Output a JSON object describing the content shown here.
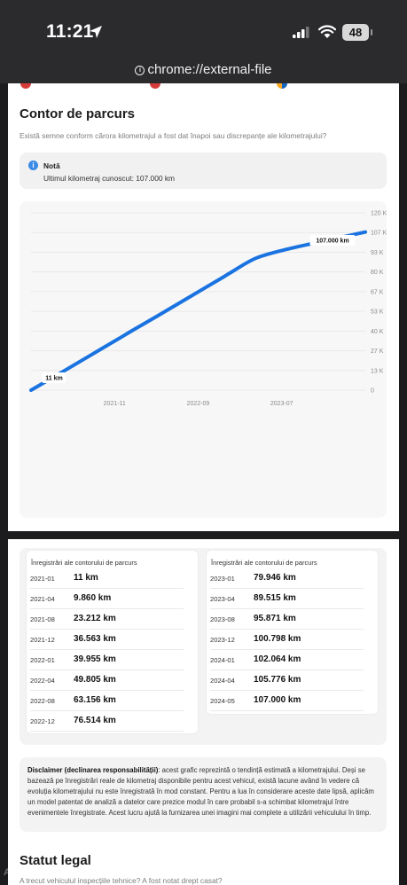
{
  "status_bar": {
    "time": "11:21",
    "battery": "48"
  },
  "browser": {
    "url": "chrome://external-file"
  },
  "odometer": {
    "title": "Contor de parcurs",
    "subtitle": "Există semne conform cărora kilometrajul a fost dat înapoi sau discrepanțe ale kilometrajului?",
    "note_title": "Notă",
    "note_text": "Ultimul kilometraj cunoscut: 107.000 km"
  },
  "chart_data": {
    "type": "line",
    "title": "",
    "xlabel": "",
    "ylabel": "",
    "x_tick_labels": [
      "2021-11",
      "2022-09",
      "2023-07"
    ],
    "y_tick_labels": [
      "120 K",
      "107 K",
      "93 K",
      "80 K",
      "67 K",
      "53 K",
      "40 K",
      "27 K",
      "13 K",
      "0"
    ],
    "ylim": [
      0,
      120000
    ],
    "grid": true,
    "series": [
      {
        "x": [
          "2021-01",
          "2021-04",
          "2021-08",
          "2021-12",
          "2022-01",
          "2022-04",
          "2022-08",
          "2022-12",
          "2023-01",
          "2023-04",
          "2023-08",
          "2023-12",
          "2024-01",
          "2024-04",
          "2024-05"
        ],
        "values": [
          11,
          9860,
          23212,
          36563,
          39955,
          49805,
          63156,
          76514,
          79946,
          89515,
          95871,
          100798,
          102064,
          105776,
          107000
        ]
      }
    ],
    "annotations": {
      "start_label": "11 km",
      "end_label": "107.000 km"
    },
    "line_color": "#1a73e0"
  },
  "records": {
    "left": {
      "title": "Înregistrări ale contorului de parcurs",
      "rows": [
        {
          "date": "2021-01",
          "value": "11 km"
        },
        {
          "date": "2021-04",
          "value": "9.860 km"
        },
        {
          "date": "2021-08",
          "value": "23.212 km"
        },
        {
          "date": "2021-12",
          "value": "36.563 km"
        },
        {
          "date": "2022-01",
          "value": "39.955 km"
        },
        {
          "date": "2022-04",
          "value": "49.805 km"
        },
        {
          "date": "2022-08",
          "value": "63.156 km"
        },
        {
          "date": "2022-12",
          "value": "76.514 km"
        }
      ]
    },
    "right": {
      "title": "Înregistrări ale contorului de parcurs",
      "rows": [
        {
          "date": "2023-01",
          "value": "79.946 km"
        },
        {
          "date": "2023-04",
          "value": "89.515 km"
        },
        {
          "date": "2023-08",
          "value": "95.871 km"
        },
        {
          "date": "2023-12",
          "value": "100.798 km"
        },
        {
          "date": "2024-01",
          "value": "102.064 km"
        },
        {
          "date": "2024-04",
          "value": "105.776 km"
        },
        {
          "date": "2024-05",
          "value": "107.000 km"
        }
      ]
    }
  },
  "disclaimer": {
    "label": "Disclaimer (declinarea responsabilității)",
    "text": ": acest grafic reprezintă o tendință estimată a kilometrajului. Deși se bazează pe înregistrări reale de kilometraj disponibile pentru acest vehicul, există lacune având în vedere că evoluția kilometrajului nu este înregistrată în mod constant. Pentru a lua în considerare aceste date lipsă, aplicăm un model patentat de analiză a datelor care prezice modul în care probabil s-a schimbat kilometrajul între evenimentele înregistrate. Acest lucru ajută la furnizarea unei imagini mai complete a utilizării vehiculului în timp."
  },
  "legal": {
    "title": "Statut legal",
    "subtitle": "A trecut vehiculul inspecțiile tehnice? A fost notat drept casat?"
  },
  "watermark": "AUTOVITZO",
  "colors": {
    "accent": "#1a73e0",
    "info": "#3b8be5",
    "cut_red": "#d63b3b"
  }
}
